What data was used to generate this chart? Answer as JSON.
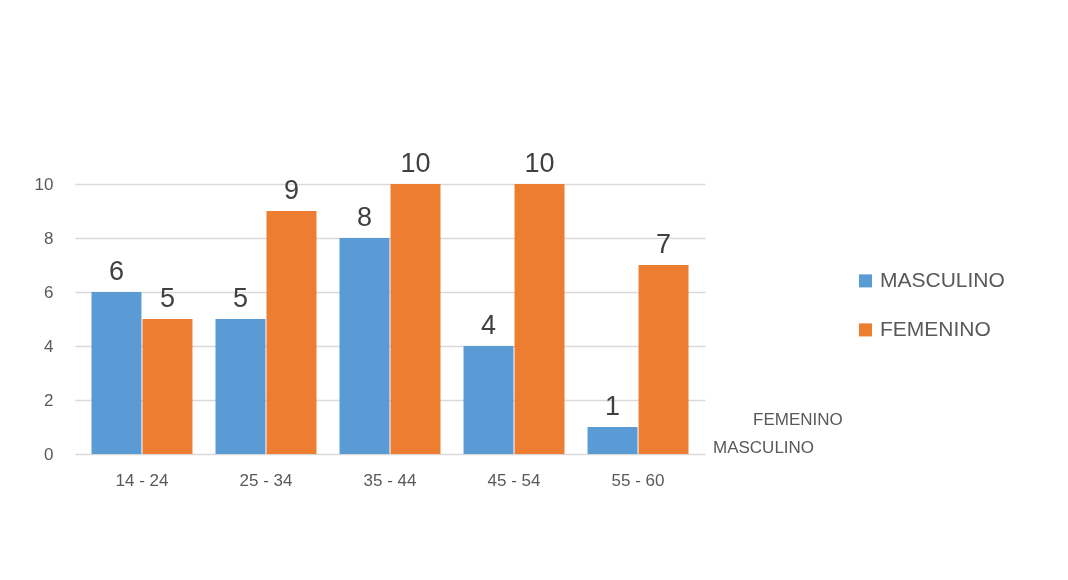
{
  "chart_data": {
    "type": "bar",
    "categories": [
      "14 - 24",
      "25 - 34",
      "35 - 44",
      "45 - 54",
      "55 - 60"
    ],
    "series": [
      {
        "name": "MASCULINO",
        "color": "#5b9bd5",
        "values": [
          6,
          5,
          8,
          4,
          1
        ]
      },
      {
        "name": "FEMENINO",
        "color": "#ed7d31",
        "values": [
          5,
          9,
          10,
          10,
          7
        ]
      }
    ],
    "ylim": [
      0,
      10
    ],
    "yticks": [
      0,
      2,
      4,
      6,
      8,
      10
    ],
    "grid": "y",
    "legend": "right",
    "data_labels": true,
    "annotations": [
      "FEMENINO",
      "MASCULINO"
    ]
  }
}
